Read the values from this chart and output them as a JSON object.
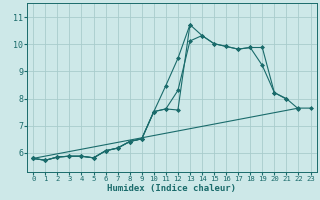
{
  "xlabel": "Humidex (Indice chaleur)",
  "bg_color": "#cde8e8",
  "line_color": "#1a6b6b",
  "grid_color": "#a8cccc",
  "x_ticks": [
    0,
    1,
    2,
    3,
    4,
    5,
    6,
    7,
    8,
    9,
    10,
    11,
    12,
    13,
    14,
    15,
    16,
    17,
    18,
    19,
    20,
    21,
    22,
    23
  ],
  "y_ticks": [
    6,
    7,
    8,
    9,
    10,
    11
  ],
  "ylim": [
    5.3,
    11.5
  ],
  "xlim": [
    -0.5,
    23.5
  ],
  "series": [
    {
      "x": [
        0,
        1,
        2,
        3,
        4,
        5,
        6,
        7,
        8,
        9,
        10,
        11,
        12,
        13,
        14,
        15,
        16,
        17,
        18,
        19,
        20,
        21,
        22
      ],
      "y": [
        5.8,
        5.73,
        5.85,
        5.88,
        5.88,
        5.82,
        6.08,
        6.18,
        6.42,
        6.52,
        7.52,
        7.62,
        7.58,
        10.72,
        10.32,
        10.02,
        9.92,
        9.82,
        9.88,
        9.88,
        8.22,
        8.0,
        7.62
      ]
    },
    {
      "x": [
        0,
        1,
        2,
        3,
        4,
        5,
        6,
        7,
        8,
        9,
        10,
        11,
        12,
        13,
        14,
        15,
        16,
        17,
        18,
        19,
        20,
        21
      ],
      "y": [
        5.8,
        5.73,
        5.85,
        5.88,
        5.88,
        5.82,
        6.08,
        6.18,
        6.42,
        6.52,
        7.52,
        7.62,
        8.3,
        10.12,
        10.32,
        10.02,
        9.92,
        9.82,
        9.88,
        9.22,
        8.22,
        7.98
      ]
    },
    {
      "x": [
        0,
        1,
        2,
        3,
        4,
        5,
        6,
        7,
        8,
        9,
        10,
        11,
        12,
        13
      ],
      "y": [
        5.8,
        5.73,
        5.85,
        5.88,
        5.88,
        5.82,
        6.08,
        6.18,
        6.42,
        6.52,
        7.52,
        8.48,
        9.48,
        10.72
      ]
    },
    {
      "x": [
        0,
        22,
        23
      ],
      "y": [
        5.8,
        7.65,
        7.65
      ]
    }
  ]
}
